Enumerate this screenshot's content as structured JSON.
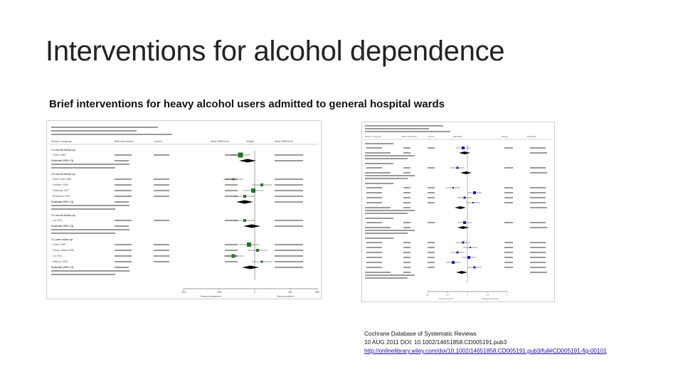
{
  "slide": {
    "title": "Interventions for alcohol dependence",
    "subtitle": "Brief interventions for heavy alcohol users admitted to general hospital wards"
  },
  "figure_left": {
    "name": "forest-plot-mean-difference",
    "colors": {
      "square": "#1e7a1e",
      "diamond": "#000000"
    },
    "header": [
      "Study or subgroup",
      "Brief intervention",
      "Control",
      "Mean Difference",
      "Weight",
      "Mean Difference"
    ],
    "subgroups": [
      {
        "label": "1 3 month follow up",
        "studies": [
          "Chick 1985"
        ],
        "total": "Subtotal (95% CI)"
      },
      {
        "label": "2 6 month follow up",
        "studies": [
          "Antti-Poika 1988",
          "Heather 1996",
          "Holloway 2007",
          "McManus 2003"
        ],
        "total": "Subtotal (95% CI)"
      },
      {
        "label": "3 9 month follow up",
        "studies": [
          "Liu 2011"
        ],
        "total": "Subtotal (95% CI)"
      },
      {
        "label": "4 1 year follow up",
        "studies": [
          "Chick 1985",
          "Freyer-Adam 2008",
          "Liu 2011",
          "Watson 1999"
        ],
        "total": "Subtotal (95% CI)"
      }
    ],
    "axis": {
      "ticks": [
        "-500",
        "-250",
        "0",
        "250",
        "500"
      ],
      "left_label": "Favours treatment",
      "right_label": "Favours control"
    }
  },
  "figure_right": {
    "name": "forest-plot-risk-ratio",
    "colors": {
      "square": "#1a1acc",
      "diamond": "#000000"
    },
    "header": [
      "Study or subgroup",
      "Brief intervention",
      "Control",
      "Risk Ratio",
      "Weight",
      "Risk Ratio"
    ],
    "axis": {
      "ticks": [
        "0.5",
        "0.7",
        "1",
        "1.5",
        "2"
      ],
      "left_label": "Favours control",
      "right_label": "Favours treatment"
    }
  },
  "caption": {
    "source": "Cochrane Database of Systematic Reviews",
    "date_doi": "10 AUG 2011 DOI: 10.1002/14651858.CD005191.pub3",
    "link": "http://onlinelibrary.wiley.com/doi/10.1002/14651858.CD005191.pub3/full#CD005191-fig-00101"
  }
}
